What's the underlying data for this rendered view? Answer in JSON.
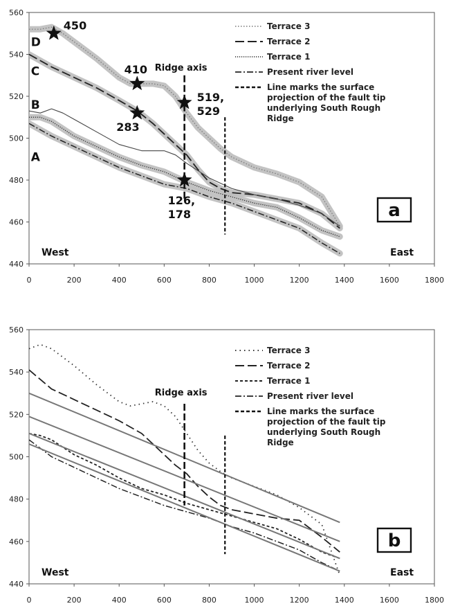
{
  "chart_data": [
    {
      "panel": "a",
      "type": "line",
      "xlim": [
        0,
        1800
      ],
      "ylim": [
        440,
        560
      ],
      "xticks": [
        0,
        200,
        400,
        600,
        800,
        1000,
        1200,
        1400,
        1600,
        1800
      ],
      "yticks": [
        440,
        460,
        480,
        500,
        520,
        540,
        560
      ],
      "grid": false,
      "legend_position": "top-right",
      "panel_label": "a",
      "west_label": "West",
      "east_label": "East",
      "ridge_axis_label": "Ridge axis",
      "ridge_axis_x": 690,
      "ridge_axis_y": [
        470,
        530
      ],
      "fault_tip_x": 870,
      "fault_tip_y": [
        454,
        510
      ],
      "terrace_letters": [
        {
          "text": "D",
          "x": -10,
          "y": 546
        },
        {
          "text": "C",
          "x": -10,
          "y": 532
        },
        {
          "text": "B",
          "x": -10,
          "y": 516
        },
        {
          "text": "A",
          "x": -10,
          "y": 491
        }
      ],
      "stars": [
        {
          "x": 110,
          "y": 550,
          "label": "450"
        },
        {
          "x": 480,
          "y": 526,
          "label": "410"
        },
        {
          "x": 480,
          "y": 512,
          "label": "283"
        },
        {
          "x": 690,
          "y": 517,
          "label_lines": [
            "519,",
            "529"
          ]
        },
        {
          "x": 690,
          "y": 480,
          "label_lines": [
            "126,",
            "178"
          ]
        }
      ],
      "legend": [
        {
          "name": "Terrace 3",
          "style": "dotted-light"
        },
        {
          "name": "Terrace 2",
          "style": "long-dash"
        },
        {
          "name": "Terrace 1",
          "style": "fine-dot"
        },
        {
          "name": "Present river level",
          "style": "dash-dot"
        },
        {
          "name": "Line marks the surface projection of the fault tip underlying South Rough Ridge",
          "lines": [
            "Line marks the surface",
            "projection of the fault tip",
            "underlying South Rough",
            "Ridge"
          ],
          "style": "thick-dash"
        }
      ],
      "series": [
        {
          "name": "Terrace 3",
          "style": "dotted-light",
          "x": [
            0,
            50,
            100,
            150,
            200,
            300,
            400,
            450,
            500,
            550,
            600,
            650,
            700,
            750,
            800,
            850,
            900,
            1000,
            1100,
            1200,
            1300,
            1380
          ],
          "y": [
            552,
            552,
            553,
            550,
            546,
            538,
            529,
            526,
            526,
            526,
            525,
            520,
            512,
            505,
            500,
            495,
            491,
            486,
            483,
            479,
            472,
            458
          ]
        },
        {
          "name": "Terrace 2",
          "style": "long-dash",
          "x": [
            0,
            100,
            200,
            300,
            400,
            480,
            550,
            600,
            650,
            700,
            750,
            800,
            850,
            900,
            1000,
            1100,
            1200,
            1300,
            1380
          ],
          "y": [
            540,
            534,
            529,
            524,
            518,
            513,
            507,
            502,
            497,
            492,
            485,
            479,
            476,
            474,
            473,
            471,
            469,
            464,
            457
          ]
        },
        {
          "name": "Terrace 1",
          "style": "fine-dot",
          "x": [
            0,
            50,
            100,
            200,
            300,
            400,
            500,
            600,
            700,
            800,
            900,
            1000,
            1100,
            1200,
            1300,
            1380
          ],
          "y": [
            510,
            510,
            508,
            501,
            496,
            491,
            487,
            484,
            479,
            475,
            472,
            469,
            467,
            462,
            456,
            453
          ]
        },
        {
          "name": "Present river level",
          "style": "dash-dot",
          "x": [
            0,
            100,
            200,
            300,
            400,
            500,
            600,
            700,
            800,
            900,
            1000,
            1100,
            1200,
            1300,
            1380
          ],
          "y": [
            507,
            501,
            496,
            491,
            486,
            482,
            478,
            476,
            472,
            469,
            465,
            461,
            457,
            450,
            445
          ]
        },
        {
          "name": "B",
          "style": "solid",
          "x": [
            0,
            50,
            100,
            150,
            200,
            300,
            400,
            500,
            550,
            600,
            650,
            700,
            800,
            900,
            1000,
            1100,
            1200,
            1300,
            1380
          ],
          "y": [
            513,
            512,
            514,
            512,
            509,
            503,
            497,
            494,
            494,
            494,
            492,
            488,
            481,
            476,
            473,
            471,
            468,
            464,
            458
          ]
        }
      ]
    },
    {
      "panel": "b",
      "type": "line",
      "xlim": [
        0,
        1800
      ],
      "ylim": [
        440,
        560
      ],
      "xticks": [
        0,
        200,
        400,
        600,
        800,
        1000,
        1200,
        1400,
        1600,
        1800
      ],
      "yticks": [
        440,
        460,
        480,
        500,
        520,
        540,
        560
      ],
      "grid": false,
      "legend_position": "top-right",
      "panel_label": "b",
      "west_label": "West",
      "east_label": "East",
      "ridge_axis_label": "Ridge axis",
      "ridge_axis_x": 690,
      "ridge_axis_y": [
        477,
        525
      ],
      "fault_tip_x": 870,
      "fault_tip_y": [
        454,
        510
      ],
      "legend": [
        {
          "name": "Terrace 3",
          "style": "dotted"
        },
        {
          "name": "Terrace 2",
          "style": "long-dash"
        },
        {
          "name": "Terrace 1",
          "style": "short-dash"
        },
        {
          "name": "Present river level",
          "style": "dash-dot"
        },
        {
          "name": "Line marks the surface projection of the fault tip underlying South Rough Ridge",
          "lines": [
            "Line marks the surface",
            "projection of the fault tip",
            "underlying South Rough",
            "Ridge"
          ],
          "style": "thick-dash"
        }
      ],
      "series": [
        {
          "name": "Terrace 3",
          "style": "dotted",
          "x": [
            0,
            50,
            100,
            150,
            200,
            300,
            400,
            450,
            500,
            550,
            600,
            650,
            700,
            750,
            800,
            850,
            900,
            1000,
            1100,
            1200,
            1300,
            1380
          ],
          "y": [
            551,
            553,
            551,
            547,
            543,
            534,
            526,
            524,
            525,
            526,
            524,
            519,
            511,
            503,
            497,
            493,
            490,
            486,
            482,
            476,
            468,
            444
          ]
        },
        {
          "name": "Terrace 2",
          "style": "long-dash",
          "x": [
            0,
            100,
            200,
            300,
            400,
            500,
            550,
            600,
            650,
            700,
            750,
            800,
            850,
            900,
            1000,
            1100,
            1200,
            1300,
            1380
          ],
          "y": [
            541,
            532,
            527,
            522,
            517,
            511,
            506,
            501,
            496,
            492,
            486,
            481,
            477,
            475,
            473,
            471,
            470,
            462,
            455
          ]
        },
        {
          "name": "Terrace 1",
          "style": "short-dash",
          "x": [
            0,
            50,
            100,
            200,
            300,
            400,
            500,
            600,
            700,
            800,
            900,
            1000,
            1100,
            1200,
            1300,
            1380
          ],
          "y": [
            511,
            510,
            508,
            501,
            496,
            490,
            485,
            482,
            478,
            475,
            472,
            469,
            466,
            461,
            455,
            452
          ]
        },
        {
          "name": "Present river level",
          "style": "dash-dot",
          "x": [
            0,
            100,
            200,
            300,
            400,
            500,
            600,
            700,
            800,
            900,
            1000,
            1100,
            1200,
            1300,
            1380
          ],
          "y": [
            508,
            500,
            495,
            490,
            485,
            481,
            477,
            474,
            471,
            467,
            464,
            460,
            456,
            450,
            446
          ]
        },
        {
          "name": "fit-1",
          "style": "gray-solid",
          "x": [
            0,
            1380
          ],
          "y": [
            530,
            469
          ]
        },
        {
          "name": "fit-2",
          "style": "gray-solid",
          "x": [
            0,
            1380
          ],
          "y": [
            519,
            460
          ]
        },
        {
          "name": "fit-3",
          "style": "gray-solid",
          "x": [
            0,
            1380
          ],
          "y": [
            511,
            452
          ]
        },
        {
          "name": "fit-4",
          "style": "gray-solid",
          "x": [
            0,
            1380
          ],
          "y": [
            506,
            446
          ]
        }
      ]
    }
  ]
}
